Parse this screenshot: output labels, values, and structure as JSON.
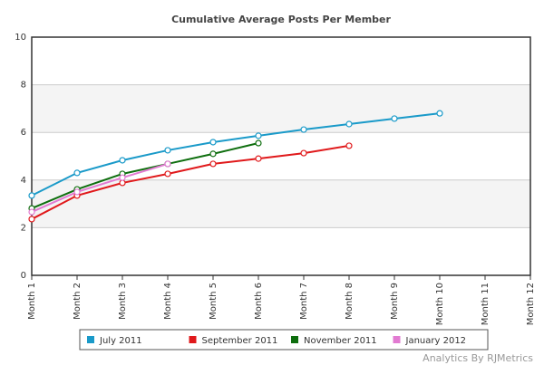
{
  "chart_data": {
    "type": "line",
    "title": "Cumulative Average Posts Per Member",
    "categories": [
      "Month 1",
      "Month 2",
      "Month 3",
      "Month 4",
      "Month 5",
      "Month 6",
      "Month 7",
      "Month 8",
      "Month 9",
      "Month 10",
      "Month 11",
      "Month 12"
    ],
    "series": [
      {
        "name": "July 2011",
        "color": "#1a9ac9",
        "values": [
          3.35,
          4.3,
          4.83,
          5.25,
          5.59,
          5.86,
          6.12,
          6.35,
          6.58,
          6.8,
          null,
          null
        ]
      },
      {
        "name": "September 2011",
        "color": "#e0191b",
        "values": [
          2.36,
          3.35,
          3.88,
          4.26,
          4.68,
          4.9,
          5.13,
          5.44,
          null,
          null,
          null,
          null
        ]
      },
      {
        "name": "November 2011",
        "color": "#0e6e0e",
        "values": [
          2.81,
          3.61,
          4.26,
          4.68,
          5.1,
          5.55,
          null,
          null,
          null,
          null,
          null,
          null
        ]
      },
      {
        "name": "January 2012",
        "color": "#e27bd2",
        "values": [
          2.66,
          3.5,
          4.1,
          4.68,
          null,
          null,
          null,
          null,
          null,
          null,
          null,
          null
        ]
      }
    ],
    "ylim": [
      0,
      10
    ],
    "yticks": [
      0,
      2,
      4,
      6,
      8,
      10
    ],
    "grid": true,
    "legend": "bottom",
    "watermark": "Analytics By RJMetrics"
  }
}
